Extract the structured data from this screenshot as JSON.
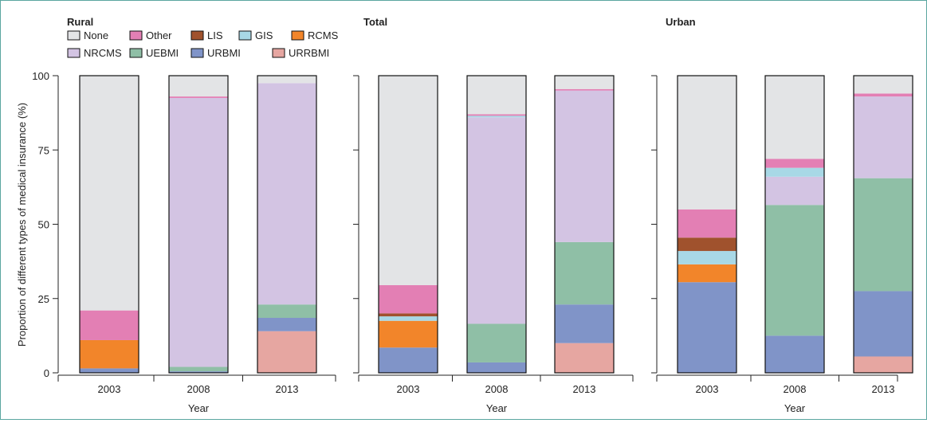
{
  "colors": {
    "None": "#e3e4e6",
    "Other": "#e37fb4",
    "LIS": "#a0522d",
    "GIS": "#a8d8e6",
    "RCMS": "#f2852a",
    "NRCMS": "#d3c4e3",
    "UEBMI": "#8fbfa6",
    "URBMI": "#8094c8",
    "URRBMI": "#e6a6a1"
  },
  "legend": {
    "row1": [
      "None",
      "Other",
      "LIS",
      "GIS",
      "RCMS"
    ],
    "row2": [
      "NRCMS",
      "UEBMI",
      "URBMI",
      "URRBMI"
    ]
  },
  "ylabel": "Proportion of different types of medical insurance (%)",
  "xlabel": "Year",
  "chart_data": [
    {
      "type": "bar",
      "stacked": true,
      "title": "Rural",
      "categories": [
        "2003",
        "2008",
        "2013"
      ],
      "ylim": [
        0,
        100
      ],
      "yticks": [
        0,
        25,
        50,
        75,
        100
      ],
      "xlabel": "Year",
      "ylabel": "Proportion of different types of medical insurance (%)",
      "series": [
        {
          "name": "URRBMI",
          "values": [
            0,
            0,
            14
          ]
        },
        {
          "name": "URBMI",
          "values": [
            1.5,
            0.5,
            4.5
          ]
        },
        {
          "name": "UEBMI",
          "values": [
            0,
            1.5,
            4.5
          ]
        },
        {
          "name": "NRCMS",
          "values": [
            0,
            90.5,
            74.5
          ]
        },
        {
          "name": "RCMS",
          "values": [
            9.5,
            0,
            0
          ]
        },
        {
          "name": "GIS",
          "values": [
            0,
            0,
            0
          ]
        },
        {
          "name": "LIS",
          "values": [
            0,
            0,
            0
          ]
        },
        {
          "name": "Other",
          "values": [
            10,
            0.5,
            0
          ]
        },
        {
          "name": "None",
          "values": [
            79,
            7,
            2.5
          ]
        }
      ]
    },
    {
      "type": "bar",
      "stacked": true,
      "title": "Total",
      "categories": [
        "2003",
        "2008",
        "2013"
      ],
      "ylim": [
        0,
        100
      ],
      "yticks": [
        0,
        25,
        50,
        75,
        100
      ],
      "xlabel": "Year",
      "series": [
        {
          "name": "URRBMI",
          "values": [
            0,
            0,
            10
          ]
        },
        {
          "name": "URBMI",
          "values": [
            8.5,
            3.5,
            13
          ]
        },
        {
          "name": "UEBMI",
          "values": [
            0,
            13,
            21
          ]
        },
        {
          "name": "NRCMS",
          "values": [
            0,
            69.5,
            51
          ]
        },
        {
          "name": "RCMS",
          "values": [
            9,
            0,
            0
          ]
        },
        {
          "name": "GIS",
          "values": [
            1.5,
            0.5,
            0
          ]
        },
        {
          "name": "LIS",
          "values": [
            1,
            0,
            0
          ]
        },
        {
          "name": "Other",
          "values": [
            9.5,
            0.5,
            0.5
          ]
        },
        {
          "name": "None",
          "values": [
            70.5,
            13,
            4.5
          ]
        }
      ]
    },
    {
      "type": "bar",
      "stacked": true,
      "title": "Urban",
      "categories": [
        "2003",
        "2008",
        "2013"
      ],
      "ylim": [
        0,
        100
      ],
      "yticks": [
        0,
        25,
        50,
        75,
        100
      ],
      "xlabel": "Year",
      "series": [
        {
          "name": "URRBMI",
          "values": [
            0,
            0,
            5.5
          ]
        },
        {
          "name": "URBMI",
          "values": [
            30.5,
            12.5,
            22
          ]
        },
        {
          "name": "UEBMI",
          "values": [
            0,
            44,
            38
          ]
        },
        {
          "name": "NRCMS",
          "values": [
            0,
            9.5,
            27.5
          ]
        },
        {
          "name": "RCMS",
          "values": [
            6,
            0,
            0
          ]
        },
        {
          "name": "GIS",
          "values": [
            4.5,
            3,
            0
          ]
        },
        {
          "name": "LIS",
          "values": [
            4.5,
            0,
            0
          ]
        },
        {
          "name": "Other",
          "values": [
            9.5,
            3,
            1
          ]
        },
        {
          "name": "None",
          "values": [
            45,
            28,
            6
          ]
        }
      ]
    }
  ]
}
